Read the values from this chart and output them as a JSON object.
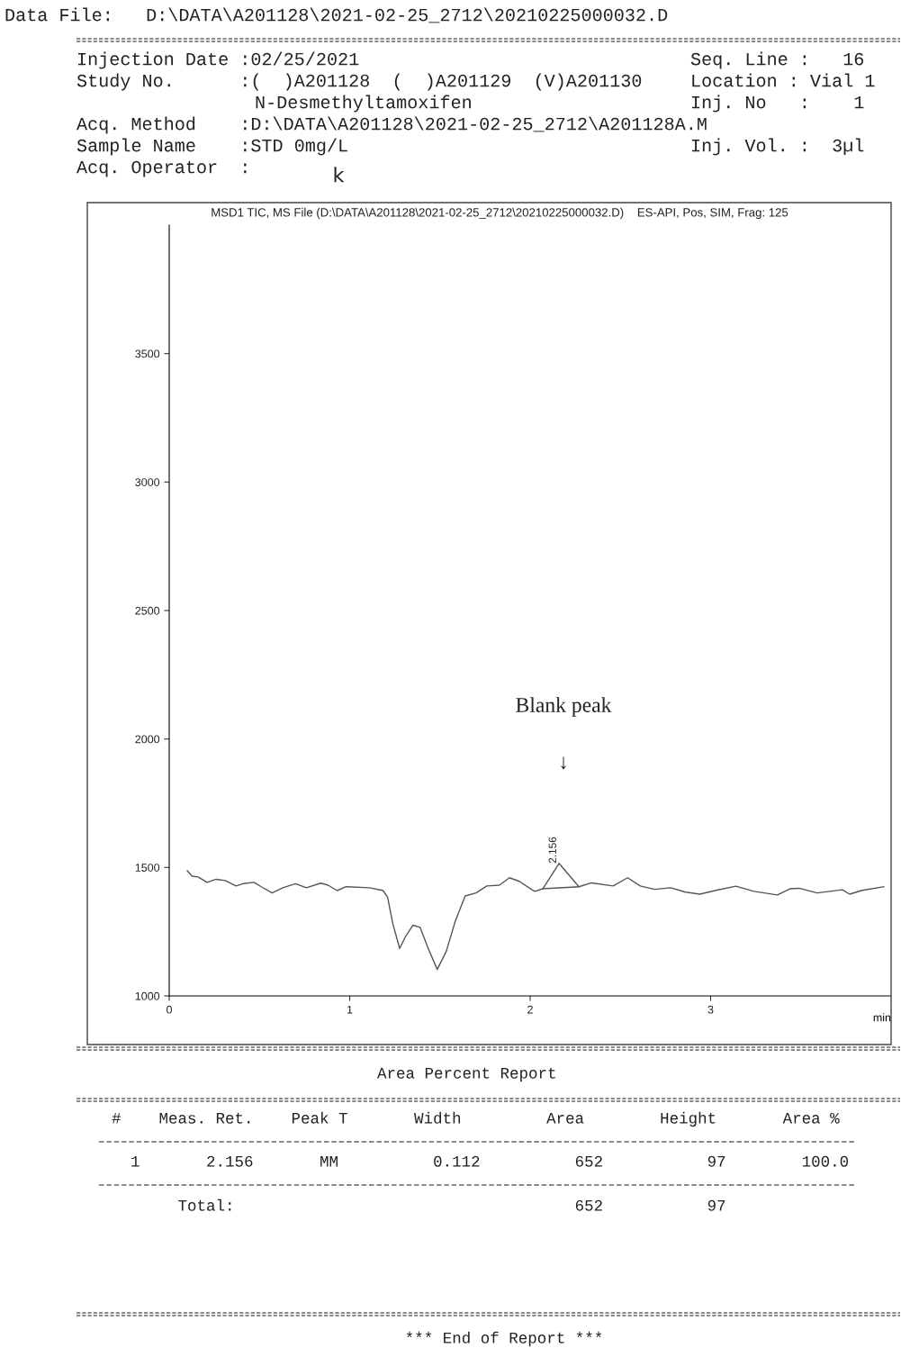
{
  "chart_data": {
    "type": "line",
    "title": "MSD1 TIC, MS File (D:\\DATA\\A201128\\2021-02-25_2712\\20210225000032.D)    ES-API, Pos, SIM, Frag: 125",
    "xlabel": "min",
    "xlim": [
      0,
      4.0
    ],
    "xticks": [
      0,
      1,
      2,
      3
    ],
    "ylim": [
      1000,
      4000
    ],
    "yticks": [
      1000,
      1500,
      2000,
      2500,
      3000,
      3500
    ],
    "grid": false,
    "legend": false,
    "marker": "none",
    "line_style": "solid",
    "series": [
      {
        "color": "#555555",
        "x": [
          0.1,
          0.127,
          0.16,
          0.21,
          0.26,
          0.31,
          0.37,
          0.41,
          0.47,
          0.51,
          0.57,
          0.63,
          0.7,
          0.76,
          0.84,
          0.88,
          0.93,
          0.98,
          1.11,
          1.185,
          1.21,
          1.24,
          1.277,
          1.31,
          1.35,
          1.39,
          1.435,
          1.485,
          1.535,
          1.585,
          1.64,
          1.7,
          1.76,
          1.83,
          1.885,
          1.94,
          2.01,
          2.027,
          2.07,
          2.16,
          2.27,
          2.34,
          2.46,
          2.54,
          2.61,
          2.69,
          2.78,
          2.86,
          2.94,
          3.03,
          3.14,
          3.24,
          3.37,
          3.44,
          3.49,
          3.59,
          3.73,
          3.77,
          3.84,
          3.96
        ],
        "values": [
          1487,
          1466,
          1463,
          1442,
          1454,
          1449,
          1428,
          1437,
          1442,
          1425,
          1401,
          1421,
          1437,
          1421,
          1439,
          1431,
          1410,
          1425,
          1421,
          1410,
          1384,
          1278,
          1185,
          1232,
          1275,
          1267,
          1185,
          1103,
          1173,
          1291,
          1389,
          1401,
          1428,
          1431,
          1460,
          1446,
          1413,
          1407,
          1417,
          1516,
          1425,
          1440,
          1428,
          1460,
          1428,
          1415,
          1421,
          1404,
          1396,
          1411,
          1427,
          1407,
          1393,
          1417,
          1419,
          1401,
          1413,
          1396,
          1411,
          1425
        ]
      },
      {
        "color": "#555555",
        "x": [
          2.07,
          2.27
        ],
        "values": [
          1417,
          1425
        ]
      }
    ],
    "annotations": [
      "Data File:   D:\\DATA\\A201128\\2021-02-25_2712\\20210225000032.D",
      "Injection Date :02/25/2021",
      "Study No.      :(  )A201128  (  )A201129  (V)A201130",
      "N-Desmethyltamoxifen",
      "Acq. Method    :D:\\DATA\\A201128\\2021-02-25_2712\\A201128A.M",
      "Sample Name    :STD 0mg/L",
      "Acq. Operator  :",
      "k",
      "Seq. Line :   16",
      "Location : Vial 1",
      "Inj. No   :    1",
      "Inj. Vol. :  3µl",
      {
        "text": "2.156",
        "x": 2.156,
        "y": 1516
      },
      "Blank peak",
      "↓",
      "Area Percent Report",
      "#    Meas. Ret.    Peak T       Width         Area        Height       Area %",
      "  1       2.156       MM          0.112          652           97        100.0",
      "       Total:                                    652           97",
      "*** End of Report ***"
    ]
  }
}
